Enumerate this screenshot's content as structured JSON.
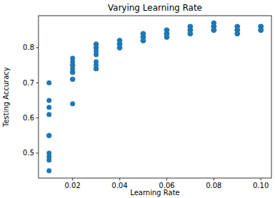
{
  "chart_data": {
    "type": "scatter",
    "title": "Varying Learning Rate",
    "x_label": "Learning Rate",
    "y_label": "Testing Accuracy",
    "x": [
      0.01,
      0.01,
      0.01,
      0.01,
      0.01,
      0.01,
      0.01,
      0.01,
      0.01,
      0.01,
      0.02,
      0.02,
      0.02,
      0.02,
      0.02,
      0.02,
      0.02,
      0.02,
      0.02,
      0.02,
      0.03,
      0.03,
      0.03,
      0.03,
      0.03,
      0.03,
      0.03,
      0.03,
      0.03,
      0.03,
      0.04,
      0.04,
      0.04,
      0.04,
      0.04,
      0.04,
      0.04,
      0.04,
      0.04,
      0.04,
      0.05,
      0.05,
      0.05,
      0.05,
      0.05,
      0.05,
      0.05,
      0.05,
      0.05,
      0.05,
      0.06,
      0.06,
      0.06,
      0.06,
      0.06,
      0.06,
      0.06,
      0.06,
      0.06,
      0.06,
      0.07,
      0.07,
      0.07,
      0.07,
      0.07,
      0.07,
      0.07,
      0.07,
      0.07,
      0.07,
      0.08,
      0.08,
      0.08,
      0.08,
      0.08,
      0.08,
      0.08,
      0.08,
      0.08,
      0.08,
      0.09,
      0.09,
      0.09,
      0.09,
      0.09,
      0.09,
      0.09,
      0.09,
      0.09,
      0.09,
      0.1,
      0.1,
      0.1,
      0.1,
      0.1,
      0.1,
      0.1,
      0.1,
      0.1,
      0.1
    ],
    "values": [
      0.7,
      0.65,
      0.63,
      0.61,
      0.55,
      0.55,
      0.5,
      0.49,
      0.48,
      0.45,
      0.77,
      0.76,
      0.75,
      0.74,
      0.73,
      0.73,
      0.71,
      0.71,
      0.64,
      0.75,
      0.81,
      0.8,
      0.8,
      0.78,
      0.76,
      0.75,
      0.74,
      0.74,
      0.81,
      0.79,
      0.82,
      0.82,
      0.81,
      0.81,
      0.8,
      0.8,
      0.81,
      0.82,
      0.8,
      0.81,
      0.84,
      0.84,
      0.83,
      0.83,
      0.82,
      0.82,
      0.84,
      0.83,
      0.82,
      0.83,
      0.85,
      0.85,
      0.84,
      0.84,
      0.83,
      0.83,
      0.85,
      0.84,
      0.84,
      0.83,
      0.86,
      0.86,
      0.85,
      0.85,
      0.84,
      0.84,
      0.86,
      0.85,
      0.85,
      0.84,
      0.87,
      0.86,
      0.86,
      0.85,
      0.85,
      0.86,
      0.87,
      0.85,
      0.86,
      0.85,
      0.86,
      0.86,
      0.85,
      0.85,
      0.84,
      0.84,
      0.86,
      0.85,
      0.85,
      0.84,
      0.86,
      0.86,
      0.85,
      0.85,
      0.85,
      0.86,
      0.86,
      0.85,
      0.85,
      0.86
    ],
    "color": "#1f77b4",
    "marker": "circle",
    "xlim": [
      0.0055,
      0.1045
    ],
    "xticks": [
      0.02,
      0.04,
      0.06,
      0.08,
      {
        "value": 0.1,
        "label": "0.10"
      }
    ],
    "ylim": [
      0.429,
      0.891
    ],
    "yticks": [
      0.5,
      0.6,
      0.7,
      0.8
    ],
    "grid": false
  }
}
